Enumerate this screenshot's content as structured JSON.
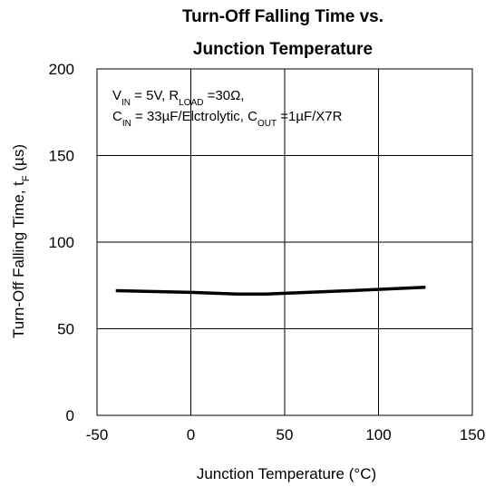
{
  "chart_data": {
    "type": "line",
    "title_line1": "Turn-Off Falling Time vs.",
    "title_line2": "Junction Temperature",
    "xlabel": "Junction Temperature (°C)",
    "ylabel": "Turn-Off Falling Time, tF (µs)",
    "xlim": [
      -50,
      150
    ],
    "ylim": [
      0,
      200
    ],
    "x_ticks": [
      "-50",
      "0",
      "50",
      "100",
      "150"
    ],
    "y_ticks": [
      "0",
      "50",
      "100",
      "150",
      "200"
    ],
    "grid": true,
    "annotation_line1": "VIN = 5V, RLOAD =30Ω,",
    "annotation_line2": "CIN = 33µF/Elctrolytic, COUT =1µF/X7R",
    "series": [
      {
        "x": [
          -40,
          0,
          25,
          40,
          85,
          125
        ],
        "y": [
          72,
          71,
          70,
          70,
          72,
          74
        ]
      }
    ]
  }
}
